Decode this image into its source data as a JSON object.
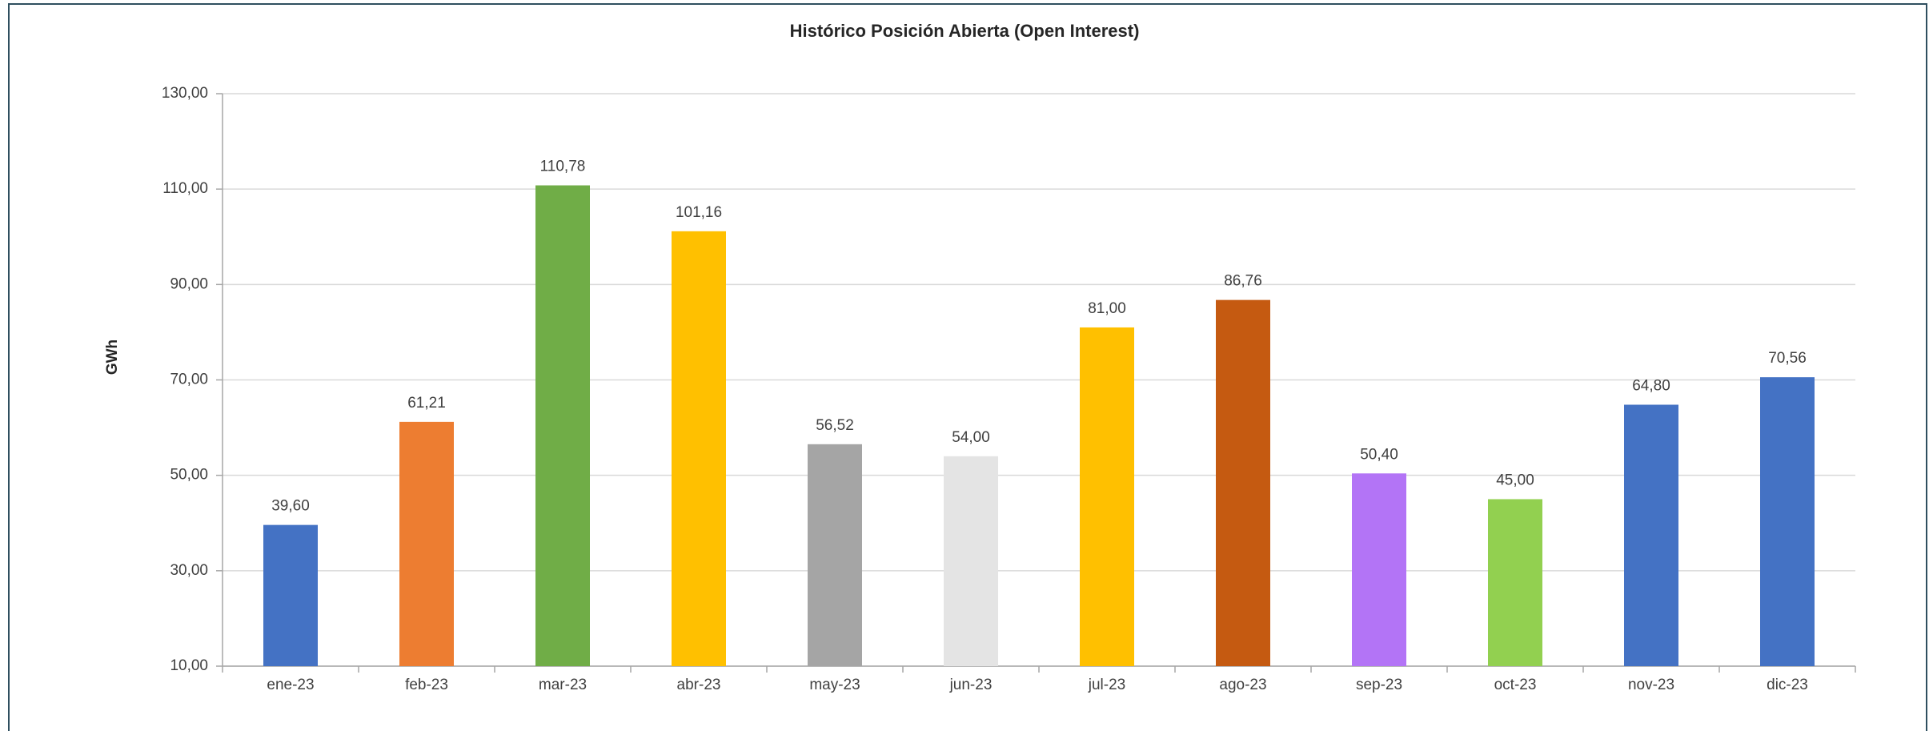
{
  "chart_data": {
    "type": "bar",
    "title": "Histórico Posición Abierta (Open Interest)",
    "y_label": "GWh",
    "categories": [
      "ene-23",
      "feb-23",
      "mar-23",
      "abr-23",
      "may-23",
      "jun-23",
      "jul-23",
      "ago-23",
      "sep-23",
      "oct-23",
      "nov-23",
      "dic-23"
    ],
    "values": [
      39.6,
      61.21,
      110.78,
      101.16,
      56.52,
      54,
      81,
      86.76,
      50.4,
      45,
      64.8,
      70.56
    ],
    "value_labels": [
      "39,60",
      "61,21",
      "110,78",
      "101,16",
      "56,52",
      "54,00",
      "81,00",
      "86,76",
      "50,40",
      "45,00",
      "64,80",
      "70,56"
    ],
    "colors": [
      "#4472c4",
      "#ed7d31",
      "#70ad47",
      "#ffc000",
      "#a5a5a5",
      "#e4e4e4",
      "#ffc000",
      "#c55a11",
      "#b374f6",
      "#92d050",
      "#4472c4",
      "#4472c4"
    ],
    "ylim": [
      10,
      130
    ],
    "yticks": [
      {
        "value": 10,
        "label": "10,00"
      },
      {
        "value": 30,
        "label": "30,00"
      },
      {
        "value": 50,
        "label": "50,00"
      },
      {
        "value": 70,
        "label": "70,00"
      },
      {
        "value": 90,
        "label": "90,00"
      },
      {
        "value": 110,
        "label": "110,00"
      },
      {
        "value": 130,
        "label": "130,00"
      }
    ],
    "grid": true
  }
}
